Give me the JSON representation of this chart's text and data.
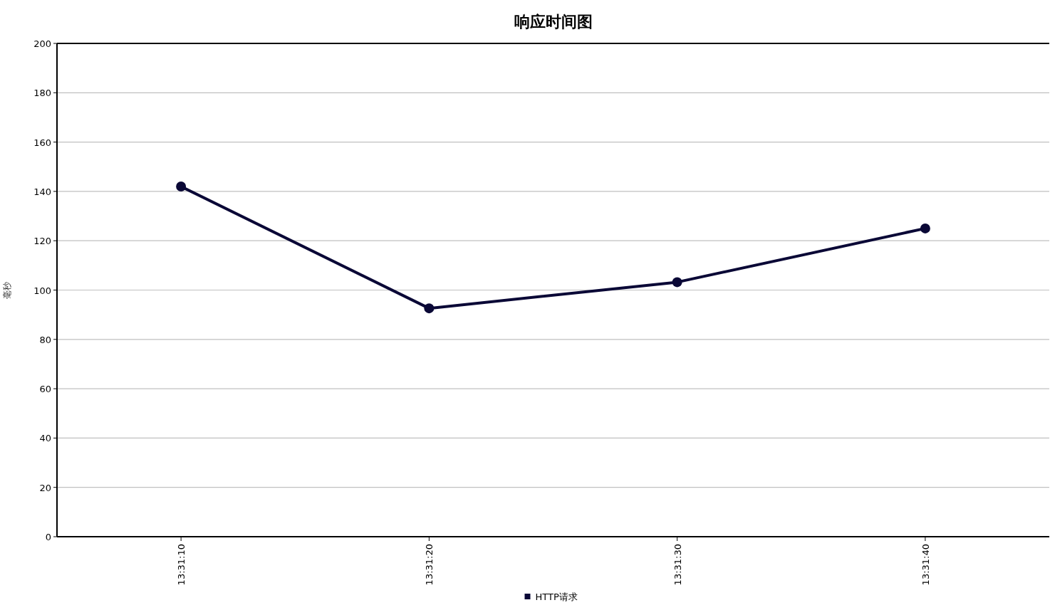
{
  "chart_data": {
    "type": "line",
    "title": "响应时间图",
    "ylabel": "毫秒",
    "categories": [
      "13:31:10",
      "13:31:20",
      "13:31:30",
      "13:31:40"
    ],
    "series": [
      {
        "name": "HTTP请求",
        "color": "#0a0836",
        "values": [
          142,
          92.6,
          103.2,
          125
        ]
      }
    ],
    "ylim": [
      0,
      200
    ],
    "yticks": [
      0,
      20,
      40,
      60,
      80,
      100,
      120,
      140,
      160,
      180,
      200
    ],
    "grid": "y",
    "legend": "bottom",
    "marker": "circle",
    "line_style": "solid"
  }
}
